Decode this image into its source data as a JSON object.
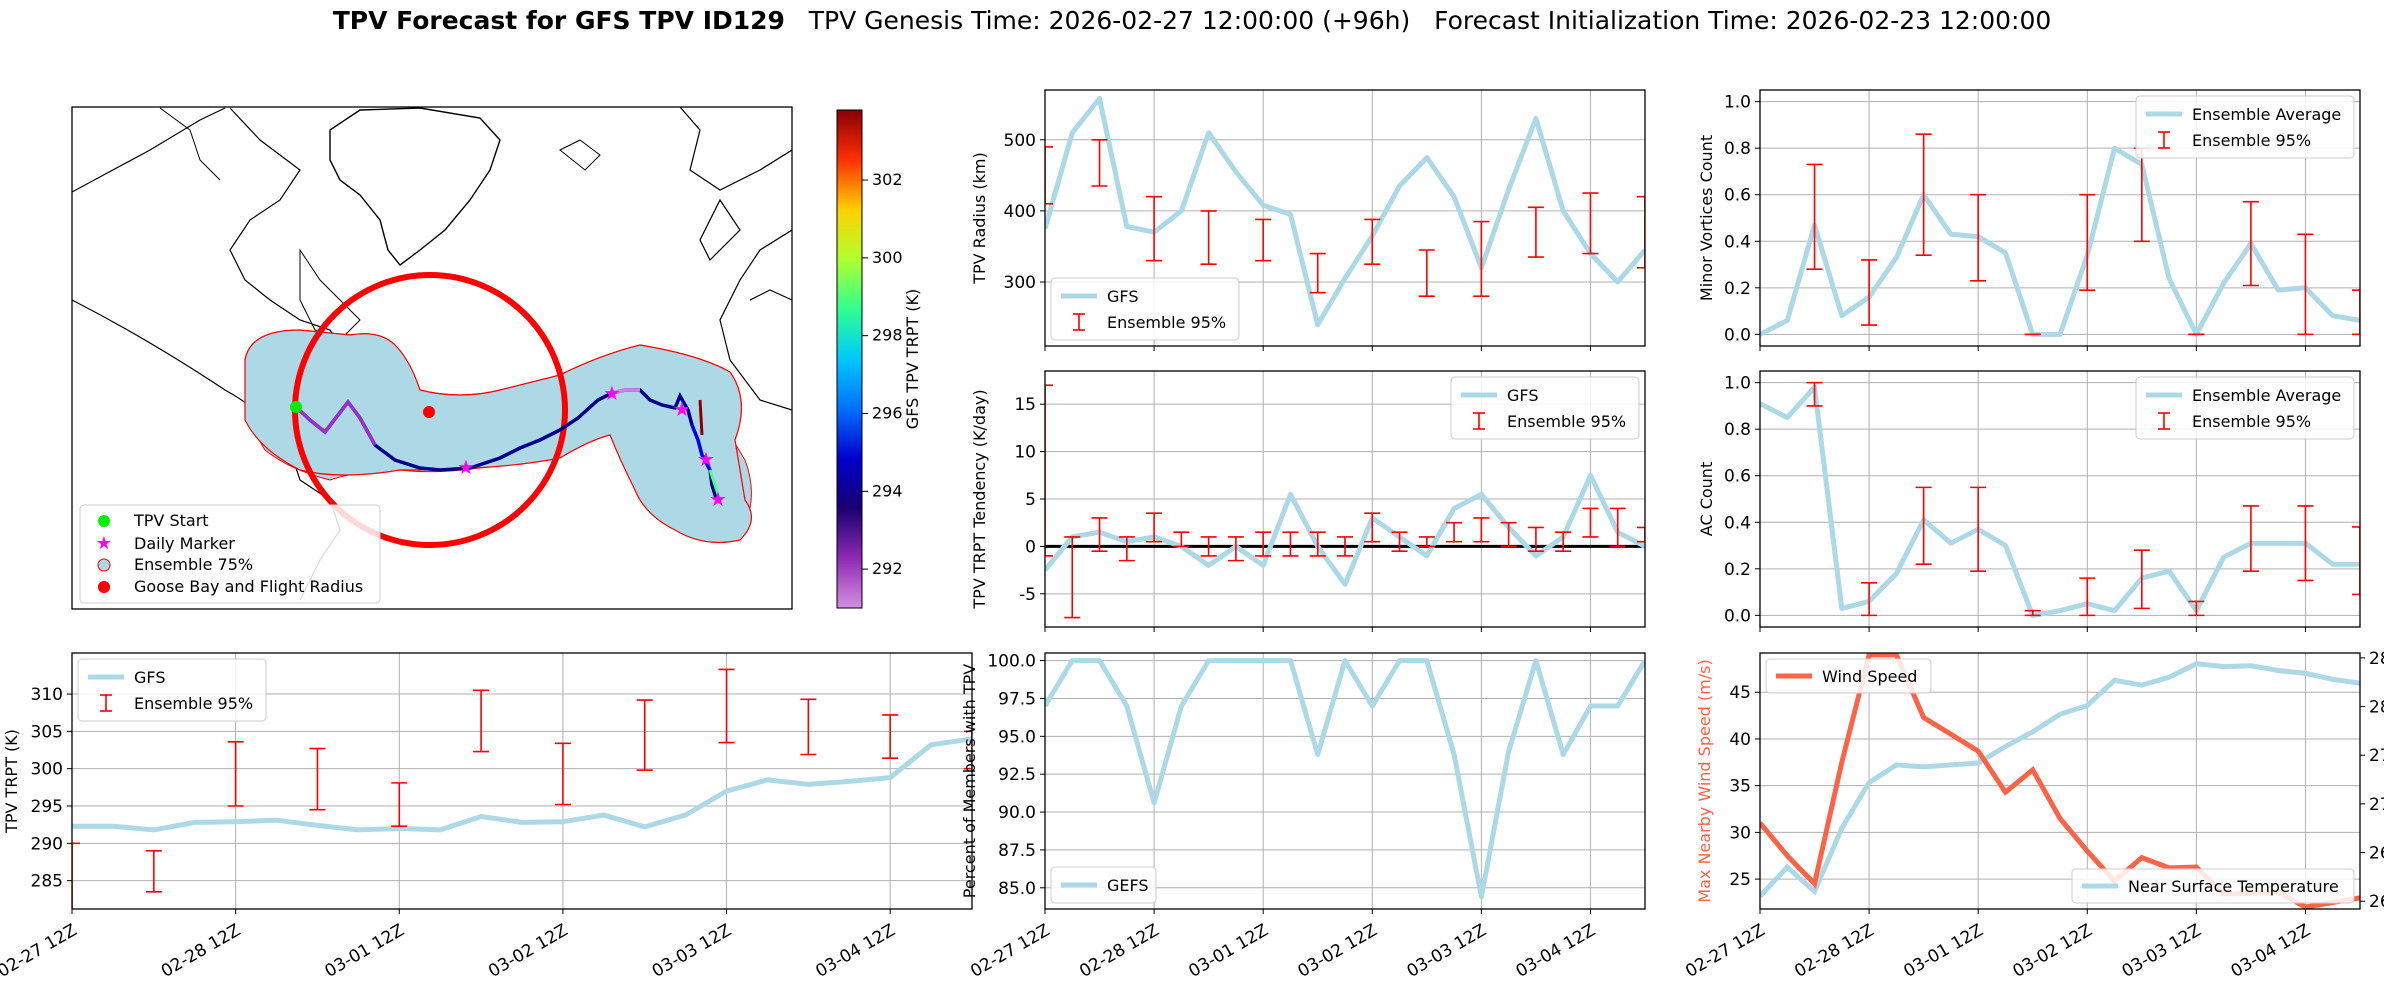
{
  "figure": {
    "title_bold": "TPV Forecast for GFS TPV ID129",
    "title_genesis": "TPV Genesis Time: 2026-02-27 12:00:00 (+96h)",
    "title_init": "Forecast Initialization Time: 2026-02-23 12:00:00"
  },
  "colors": {
    "gfs": "#add8e6",
    "ensemble": "#ff0000",
    "wind": "#ff6347",
    "temp_axis": "#4169e1",
    "zero_line": "#000000"
  },
  "time_ticks": [
    "02-27 12Z",
    "02-28 12Z",
    "03-01 12Z",
    "03-02 12Z",
    "03-03 12Z",
    "03-04 12Z"
  ],
  "map": {
    "colorbar_label": "GFS TPV TRPT (K)",
    "colorbar_ticks": [
      292,
      294,
      296,
      298,
      300,
      302
    ],
    "colorbar_range": [
      291,
      303.8
    ],
    "legend": [
      "TPV Start",
      "Daily Marker",
      "Ensemble 75%",
      "Goose Bay and Flight Radius"
    ]
  },
  "chart_data": [
    {
      "id": "radius",
      "type": "line",
      "ylabel": "TPV Radius (km)",
      "ylim": [
        210,
        570
      ],
      "yticks": [
        300,
        400,
        500
      ],
      "legend": [
        "GFS",
        "Ensemble 95%"
      ],
      "gfs": [
        375,
        510,
        558,
        378,
        370,
        400,
        510,
        455,
        408,
        395,
        240,
        305,
        365,
        435,
        475,
        420,
        320,
        430,
        530,
        400,
        340,
        300,
        345
      ],
      "ens": [
        [
          0,
          410,
          490
        ],
        [
          2,
          435,
          500
        ],
        [
          4,
          330,
          420
        ],
        [
          6,
          325,
          400
        ],
        [
          8,
          330,
          388
        ],
        [
          10,
          285,
          340
        ],
        [
          12,
          325,
          388
        ],
        [
          14,
          280,
          345
        ],
        [
          16,
          280,
          385
        ],
        [
          18,
          335,
          405
        ],
        [
          20,
          340,
          425
        ],
        [
          22,
          320,
          420
        ]
      ]
    },
    {
      "id": "tendency",
      "type": "line",
      "ylabel": "TPV TRPT Tendency (K/day)",
      "ylim": [
        -8.5,
        18.5
      ],
      "yticks": [
        -5,
        0,
        5,
        10,
        15
      ],
      "legend": [
        "GFS",
        "Ensemble 95%"
      ],
      "gfs": [
        -2.5,
        1,
        1.5,
        0.5,
        1,
        0,
        -2,
        0,
        -2,
        5.5,
        0,
        -4,
        3,
        1,
        -1,
        4,
        5.5,
        2,
        -1,
        1,
        7.5,
        1.5,
        0
      ],
      "ens": [
        [
          0,
          -1,
          17
        ],
        [
          1,
          -7.5,
          1
        ],
        [
          2,
          -0.5,
          3
        ],
        [
          3,
          -1.5,
          1
        ],
        [
          4,
          0.5,
          3.5
        ],
        [
          5,
          0,
          1.5
        ],
        [
          6,
          -1,
          1
        ],
        [
          7,
          -1.5,
          1
        ],
        [
          8,
          -1,
          1.5
        ],
        [
          9,
          -1,
          1.5
        ],
        [
          10,
          -1,
          1.5
        ],
        [
          11,
          -1,
          1
        ],
        [
          12,
          0.5,
          3.5
        ],
        [
          13,
          -0.5,
          1.5
        ],
        [
          14,
          0,
          1
        ],
        [
          15,
          0.5,
          2.5
        ],
        [
          16,
          0.5,
          3
        ],
        [
          17,
          0,
          2.5
        ],
        [
          18,
          -0.5,
          2
        ],
        [
          19,
          -0.5,
          1.5
        ],
        [
          20,
          1,
          4
        ],
        [
          21,
          0,
          4
        ],
        [
          22,
          0.5,
          2
        ]
      ]
    },
    {
      "id": "minor",
      "type": "line",
      "ylabel": "Minor Vortices Count",
      "ylim": [
        -0.05,
        1.05
      ],
      "yticks": [
        0.0,
        0.2,
        0.4,
        0.6,
        0.8,
        1.0
      ],
      "yticklabels": [
        "0.0",
        "0.2",
        "0.4",
        "0.6",
        "0.8",
        "1.0"
      ],
      "legend": [
        "Ensemble Average",
        "Ensemble 95%"
      ],
      "gfs": [
        0,
        0.06,
        0.47,
        0.08,
        0.16,
        0.33,
        0.6,
        0.43,
        0.42,
        0.35,
        0,
        0,
        0.34,
        0.8,
        0.73,
        0.24,
        0,
        0.22,
        0.39,
        0.19,
        0.2,
        0.08,
        0.06
      ],
      "ens": [
        [
          2,
          0.28,
          0.73
        ],
        [
          4,
          0.04,
          0.32
        ],
        [
          6,
          0.34,
          0.86
        ],
        [
          8,
          0.23,
          0.6
        ],
        [
          10,
          0,
          0
        ],
        [
          12,
          0.19,
          0.6
        ],
        [
          14,
          0.4,
          0.8
        ],
        [
          16,
          0,
          0
        ],
        [
          18,
          0.21,
          0.57
        ],
        [
          20,
          0,
          0.43
        ],
        [
          22,
          0,
          0.19
        ]
      ]
    },
    {
      "id": "ac",
      "type": "line",
      "ylabel": "AC Count",
      "ylim": [
        -0.05,
        1.05
      ],
      "yticks": [
        0.0,
        0.2,
        0.4,
        0.6,
        0.8,
        1.0
      ],
      "yticklabels": [
        "0.0",
        "0.2",
        "0.4",
        "0.6",
        "0.8",
        "1.0"
      ],
      "legend": [
        "Ensemble Average",
        "Ensemble 95%"
      ],
      "gfs": [
        0.91,
        0.85,
        0.98,
        0.03,
        0.06,
        0.18,
        0.41,
        0.31,
        0.37,
        0.3,
        0,
        0.02,
        0.05,
        0.02,
        0.16,
        0.19,
        0.02,
        0.25,
        0.31,
        0.31,
        0.31,
        0.22,
        0.22
      ],
      "ens": [
        [
          2,
          0.9,
          1.0
        ],
        [
          4,
          0,
          0.14
        ],
        [
          6,
          0.22,
          0.55
        ],
        [
          8,
          0.19,
          0.55
        ],
        [
          10,
          0,
          0.02
        ],
        [
          12,
          0,
          0.16
        ],
        [
          14,
          0.03,
          0.28
        ],
        [
          16,
          0,
          0.06
        ],
        [
          18,
          0.19,
          0.47
        ],
        [
          20,
          0.15,
          0.47
        ],
        [
          22,
          0.09,
          0.38
        ]
      ]
    },
    {
      "id": "trpt",
      "type": "line",
      "ylabel": "TPV TRPT (K)",
      "ylim": [
        281.2,
        315.5
      ],
      "yticks": [
        285,
        290,
        295,
        300,
        305,
        310
      ],
      "legend": [
        "GFS",
        "Ensemble 95%"
      ],
      "gfs": [
        292.3,
        292.3,
        291.8,
        292.8,
        292.9,
        293.1,
        292.4,
        291.8,
        292.0,
        291.8,
        293.6,
        292.8,
        292.9,
        293.8,
        292.2,
        293.8,
        297.0,
        298.5,
        297.9,
        298.3,
        298.8,
        303.2,
        304.0
      ],
      "ens": [
        [
          0,
          280,
          290
        ],
        [
          2,
          283.5,
          289
        ],
        [
          4,
          295,
          303.6
        ],
        [
          6,
          294.5,
          302.7
        ],
        [
          8,
          292.3,
          298.1
        ],
        [
          10,
          302.3,
          310.5
        ],
        [
          12,
          295.2,
          303.4
        ],
        [
          14,
          299.8,
          309.2
        ],
        [
          16,
          303.5,
          313.3
        ],
        [
          18,
          301.9,
          309.3
        ],
        [
          20,
          301.4,
          307.2
        ],
        [
          22,
          300,
          305
        ]
      ]
    },
    {
      "id": "percent",
      "type": "line",
      "ylabel": "Percent of Members with TPV",
      "ylim": [
        83.6,
        100.5
      ],
      "yticks": [
        85.0,
        87.5,
        90.0,
        92.5,
        95.0,
        97.5,
        100.0
      ],
      "yticklabels": [
        "85.0",
        "87.5",
        "90.0",
        "92.5",
        "95.0",
        "97.5",
        "100.0"
      ],
      "legend": [
        "GEFS"
      ],
      "gfs": [
        97,
        100,
        100,
        97,
        90.6,
        97,
        100,
        100,
        100,
        100,
        93.8,
        100,
        97,
        100,
        100,
        93.8,
        84.4,
        94,
        100,
        93.8,
        97,
        97,
        100
      ]
    },
    {
      "id": "wind",
      "type": "line",
      "ylabel": "Max Nearby Wind Speed (m/s)",
      "ylabel2": "Near Surface Temperature (K)",
      "ylim": [
        21.8,
        49.2
      ],
      "yticks": [
        25,
        30,
        35,
        40,
        45
      ],
      "ylim2": [
        259.2,
        285.5
      ],
      "yticks2": [
        260,
        265,
        270,
        275,
        280,
        285
      ],
      "legend": [
        "Wind Speed"
      ],
      "legend2": [
        "Near Surface Temperature"
      ],
      "wind": [
        31,
        27.5,
        24.5,
        37.5,
        49,
        49,
        42.3,
        40.5,
        38.7,
        34.3,
        36.7,
        31.5,
        28,
        24.8,
        27.3,
        26.2,
        26.3,
        23.4,
        23.5,
        23.6,
        22,
        22.5,
        23
      ],
      "temp": [
        260.5,
        263.5,
        261,
        267.5,
        272.2,
        274,
        273.8,
        274,
        274.2,
        275.9,
        277.4,
        279.2,
        280.1,
        282.7,
        282.2,
        283,
        284.4,
        284.1,
        284.2,
        283.7,
        283.4,
        282.8,
        282.4
      ]
    }
  ]
}
